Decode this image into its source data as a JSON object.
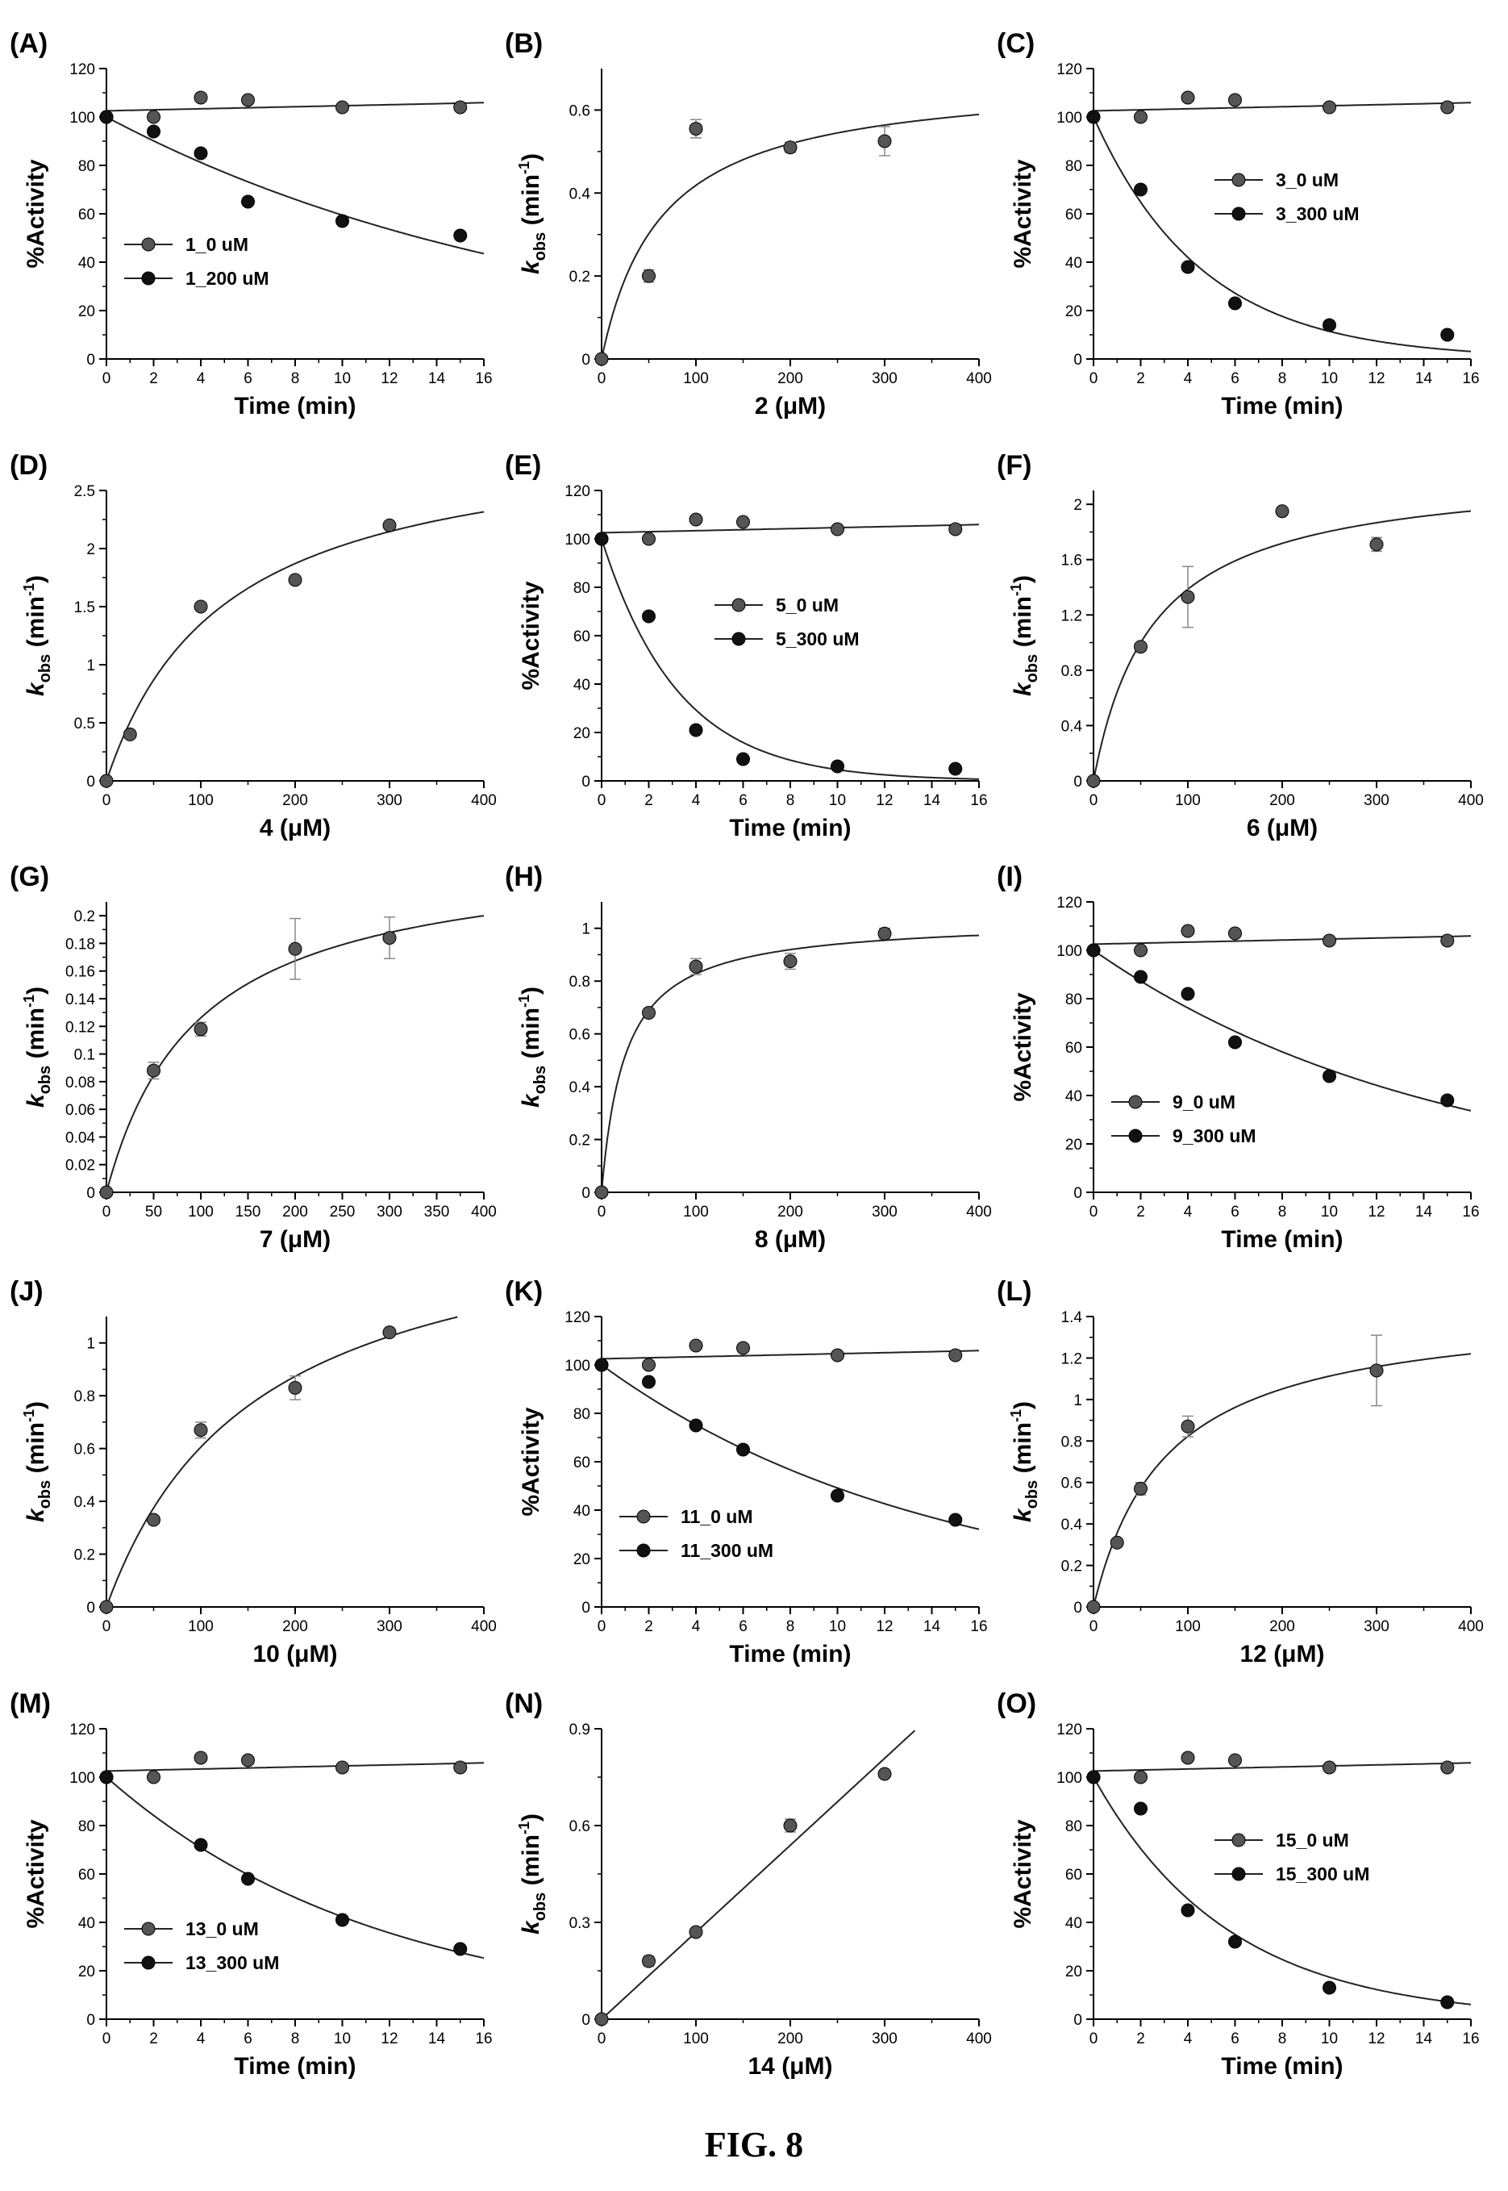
{
  "figure": {
    "caption": "FIG. 8"
  },
  "chart_data": [
    {
      "panel": "(A)",
      "type": "scatter",
      "xlabel": "Time (min)",
      "ylabel": "%Activity",
      "xlim": [
        0,
        16
      ],
      "ylim": [
        0,
        120
      ],
      "xticks": [
        0,
        2,
        4,
        6,
        8,
        10,
        12,
        14,
        16
      ],
      "yticks": [
        0,
        20,
        40,
        60,
        80,
        100,
        120
      ],
      "legend": "mid-left",
      "grid": false,
      "series": [
        {
          "name": "1_0 uM",
          "marker": "#555555",
          "x": [
            0,
            2,
            4,
            6,
            10,
            15
          ],
          "y": [
            100,
            100,
            108,
            107,
            104,
            104
          ],
          "fit": "flat"
        },
        {
          "name": "1_200 uM",
          "marker": "#111111",
          "x": [
            0,
            2,
            4,
            6,
            10,
            15
          ],
          "y": [
            100,
            94,
            85,
            65,
            57,
            51
          ],
          "fit": "decay"
        }
      ]
    },
    {
      "panel": "(B)",
      "type": "scatter",
      "xlabel": "2 (μM)",
      "ylabel": "kobs (min-1)",
      "xlim": [
        0,
        400
      ],
      "ylim": [
        0,
        0.7
      ],
      "xticks": [
        0,
        100,
        200,
        300,
        400
      ],
      "yticks": [
        0,
        0.2,
        0.4,
        0.6
      ],
      "grid": false,
      "series": [
        {
          "marker": "#555555",
          "x": [
            0,
            50,
            100,
            200,
            300
          ],
          "y": [
            0,
            0.2,
            0.555,
            0.51,
            0.525
          ],
          "err": [
            0,
            0.015,
            0.022,
            0.012,
            0.035
          ],
          "fit": "hyperbolic"
        }
      ]
    },
    {
      "panel": "(C)",
      "type": "scatter",
      "xlabel": "Time (min)",
      "ylabel": "%Activity",
      "xlim": [
        0,
        16
      ],
      "ylim": [
        0,
        120
      ],
      "xticks": [
        0,
        2,
        4,
        6,
        8,
        10,
        12,
        14,
        16
      ],
      "yticks": [
        0,
        20,
        40,
        60,
        80,
        100,
        120
      ],
      "legend": "upper-right",
      "grid": false,
      "series": [
        {
          "name": "3_0 uM",
          "marker": "#555555",
          "x": [
            0,
            2,
            4,
            6,
            10,
            15
          ],
          "y": [
            100,
            100,
            108,
            107,
            104,
            104
          ],
          "fit": "flat"
        },
        {
          "name": "3_300 uM",
          "marker": "#111111",
          "x": [
            0,
            2,
            4,
            6,
            10,
            15
          ],
          "y": [
            100,
            70,
            38,
            23,
            14,
            10
          ],
          "fit": "decay"
        }
      ]
    },
    {
      "panel": "(D)",
      "type": "scatter",
      "xlabel": "4 (μM)",
      "ylabel": "kobs (min-1)",
      "xlim": [
        0,
        400
      ],
      "ylim": [
        0,
        2.5
      ],
      "xticks": [
        0,
        100,
        200,
        300,
        400
      ],
      "yticks": [
        0,
        0.5,
        1,
        1.5,
        2,
        2.5
      ],
      "grid": false,
      "series": [
        {
          "marker": "#555555",
          "x": [
            0,
            25,
            100,
            200,
            300
          ],
          "y": [
            0,
            0.4,
            1.5,
            1.73,
            2.2
          ],
          "fit": "hyperbolic"
        }
      ]
    },
    {
      "panel": "(E)",
      "type": "scatter",
      "xlabel": "Time (min)",
      "ylabel": "%Activity",
      "xlim": [
        0,
        16
      ],
      "ylim": [
        0,
        120
      ],
      "xticks": [
        0,
        2,
        4,
        6,
        8,
        10,
        12,
        14,
        16
      ],
      "yticks": [
        0,
        20,
        40,
        60,
        80,
        100,
        120
      ],
      "legend": "mid-right",
      "grid": false,
      "series": [
        {
          "name": "5_0 uM",
          "marker": "#555555",
          "x": [
            0,
            2,
            4,
            6,
            10,
            15
          ],
          "y": [
            100,
            100,
            108,
            107,
            104,
            104
          ],
          "fit": "flat"
        },
        {
          "name": "5_300 uM",
          "marker": "#111111",
          "x": [
            0,
            2,
            4,
            6,
            10,
            15
          ],
          "y": [
            100,
            68,
            21,
            9,
            6,
            5
          ],
          "fit": "decay"
        }
      ]
    },
    {
      "panel": "(F)",
      "type": "scatter",
      "xlabel": "6 (μM)",
      "ylabel": "kobs (min-1)",
      "xlim": [
        0,
        400
      ],
      "ylim": [
        0,
        2.1
      ],
      "xticks": [
        0,
        100,
        200,
        300,
        400
      ],
      "yticks": [
        0,
        0.4,
        0.8,
        1.2,
        1.6,
        2
      ],
      "grid": false,
      "series": [
        {
          "marker": "#555555",
          "x": [
            0,
            50,
            100,
            200,
            300
          ],
          "y": [
            0,
            0.97,
            1.33,
            1.95,
            1.71
          ],
          "err": [
            0,
            0.02,
            0.22,
            0.02,
            0.05
          ],
          "fit": "hyperbolic"
        }
      ]
    },
    {
      "panel": "(G)",
      "type": "scatter",
      "xlabel": "7 (μM)",
      "ylabel": "kobs (min-1)",
      "xlim": [
        0,
        400
      ],
      "ylim": [
        0,
        0.21
      ],
      "xticks": [
        0,
        50,
        100,
        150,
        200,
        250,
        300,
        350,
        400
      ],
      "yticks": [
        0,
        0.02,
        0.04,
        0.06,
        0.08,
        0.1,
        0.12,
        0.14,
        0.16,
        0.18,
        0.2
      ],
      "grid": false,
      "series": [
        {
          "marker": "#555555",
          "x": [
            0,
            50,
            100,
            200,
            300
          ],
          "y": [
            0,
            0.088,
            0.118,
            0.176,
            0.184
          ],
          "err": [
            0,
            0.006,
            0.005,
            0.022,
            0.015
          ],
          "fit": "hyperbolic"
        }
      ]
    },
    {
      "panel": "(H)",
      "type": "scatter",
      "xlabel": "8 (μM)",
      "ylabel": "kobs (min-1)",
      "xlim": [
        0,
        400
      ],
      "ylim": [
        0,
        1.1
      ],
      "xticks": [
        0,
        100,
        200,
        300,
        400
      ],
      "yticks": [
        0,
        0.2,
        0.4,
        0.6,
        0.8,
        1
      ],
      "grid": false,
      "series": [
        {
          "marker": "#555555",
          "x": [
            0,
            50,
            100,
            200,
            300
          ],
          "y": [
            0,
            0.68,
            0.855,
            0.875,
            0.98
          ],
          "err": [
            0,
            0.015,
            0.03,
            0.03,
            0.02
          ],
          "fit": "hyperbolic"
        }
      ]
    },
    {
      "panel": "(I)",
      "type": "scatter",
      "xlabel": "Time (min)",
      "ylabel": "%Activity",
      "xlim": [
        0,
        16
      ],
      "ylim": [
        0,
        120
      ],
      "xticks": [
        0,
        2,
        4,
        6,
        8,
        10,
        12,
        14,
        16
      ],
      "yticks": [
        0,
        20,
        40,
        60,
        80,
        100,
        120
      ],
      "legend": "lower-left",
      "grid": false,
      "series": [
        {
          "name": "9_0 uM",
          "marker": "#555555",
          "x": [
            0,
            2,
            4,
            6,
            10,
            15
          ],
          "y": [
            100,
            100,
            108,
            107,
            104,
            104
          ],
          "fit": "flat"
        },
        {
          "name": "9_300 uM",
          "marker": "#111111",
          "x": [
            0,
            2,
            4,
            6,
            10,
            15
          ],
          "y": [
            100,
            89,
            82,
            62,
            48,
            38
          ],
          "fit": "decay"
        }
      ]
    },
    {
      "panel": "(J)",
      "type": "scatter",
      "xlabel": "10 (μM)",
      "ylabel": "kobs (min-1)",
      "xlim": [
        0,
        400
      ],
      "ylim": [
        0,
        1.1
      ],
      "xticks": [
        0,
        100,
        200,
        300,
        400
      ],
      "yticks": [
        0,
        0.2,
        0.4,
        0.6,
        0.8,
        1
      ],
      "grid": false,
      "series": [
        {
          "marker": "#555555",
          "x": [
            0,
            50,
            100,
            200,
            300
          ],
          "y": [
            0,
            0.33,
            0.67,
            0.83,
            1.04
          ],
          "err": [
            0,
            0.01,
            0.03,
            0.045,
            0.01
          ],
          "fit": "hyperbolic"
        }
      ]
    },
    {
      "panel": "(K)",
      "type": "scatter",
      "xlabel": "Time (min)",
      "ylabel": "%Activity",
      "xlim": [
        0,
        16
      ],
      "ylim": [
        0,
        120
      ],
      "xticks": [
        0,
        2,
        4,
        6,
        8,
        10,
        12,
        14,
        16
      ],
      "yticks": [
        0,
        20,
        40,
        60,
        80,
        100,
        120
      ],
      "legend": "lower-left",
      "grid": false,
      "series": [
        {
          "name": "11_0 uM",
          "marker": "#555555",
          "x": [
            0,
            2,
            4,
            6,
            10,
            15
          ],
          "y": [
            100,
            100,
            108,
            107,
            104,
            104
          ],
          "fit": "flat"
        },
        {
          "name": "11_300 uM",
          "marker": "#111111",
          "x": [
            0,
            2,
            4,
            6,
            10,
            15
          ],
          "y": [
            100,
            93,
            75,
            65,
            46,
            36
          ],
          "fit": "decay"
        }
      ]
    },
    {
      "panel": "(L)",
      "type": "scatter",
      "xlabel": "12 (μM)",
      "ylabel": "kobs (min-1)",
      "xlim": [
        0,
        400
      ],
      "ylim": [
        0,
        1.4
      ],
      "xticks": [
        0,
        100,
        200,
        300,
        400
      ],
      "yticks": [
        0,
        0.2,
        0.4,
        0.6,
        0.8,
        1,
        1.2,
        1.4
      ],
      "grid": false,
      "series": [
        {
          "marker": "#555555",
          "x": [
            0,
            25,
            50,
            100,
            300
          ],
          "y": [
            0,
            0.31,
            0.57,
            0.87,
            1.14
          ],
          "err": [
            0,
            0.01,
            0.03,
            0.05,
            0.17
          ],
          "fit": "hyperbolic"
        }
      ]
    },
    {
      "panel": "(M)",
      "type": "scatter",
      "xlabel": "Time (min)",
      "ylabel": "%Activity",
      "xlim": [
        0,
        16
      ],
      "ylim": [
        0,
        120
      ],
      "xticks": [
        0,
        2,
        4,
        6,
        8,
        10,
        12,
        14,
        16
      ],
      "yticks": [
        0,
        20,
        40,
        60,
        80,
        100,
        120
      ],
      "legend": "lower-left",
      "grid": false,
      "series": [
        {
          "name": "13_0 uM",
          "marker": "#555555",
          "x": [
            0,
            2,
            4,
            6,
            10,
            15
          ],
          "y": [
            100,
            100,
            108,
            107,
            104,
            104
          ],
          "fit": "flat"
        },
        {
          "name": "13_300 uM",
          "marker": "#111111",
          "x": [
            0,
            4,
            6,
            10,
            15
          ],
          "y": [
            100,
            72,
            58,
            41,
            29
          ],
          "fit": "decay"
        }
      ]
    },
    {
      "panel": "(N)",
      "type": "scatter",
      "xlabel": "14 (μM)",
      "ylabel": "kobs (min-1)",
      "xlim": [
        0,
        400
      ],
      "ylim": [
        0,
        0.9
      ],
      "xticks": [
        0,
        100,
        200,
        300,
        400
      ],
      "yticks": [
        0,
        0.3,
        0.6,
        0.9
      ],
      "grid": false,
      "series": [
        {
          "marker": "#555555",
          "x": [
            0,
            50,
            100,
            200,
            300
          ],
          "y": [
            0,
            0.18,
            0.27,
            0.6,
            0.76
          ],
          "err": [
            0,
            0.015,
            0.01,
            0.02,
            0.01
          ],
          "fit": "linear"
        }
      ]
    },
    {
      "panel": "(O)",
      "type": "scatter",
      "xlabel": "Time (min)",
      "ylabel": "%Activity",
      "xlim": [
        0,
        16
      ],
      "ylim": [
        0,
        120
      ],
      "xticks": [
        0,
        2,
        4,
        6,
        8,
        10,
        12,
        14,
        16
      ],
      "yticks": [
        0,
        20,
        40,
        60,
        80,
        100,
        120
      ],
      "legend": "upper-right",
      "grid": false,
      "series": [
        {
          "name": "15_0 uM",
          "marker": "#555555",
          "x": [
            0,
            2,
            4,
            6,
            10,
            15
          ],
          "y": [
            100,
            100,
            108,
            107,
            104,
            104
          ],
          "fit": "flat"
        },
        {
          "name": "15_300 uM",
          "marker": "#111111",
          "x": [
            0,
            2,
            4,
            6,
            10,
            15
          ],
          "y": [
            100,
            87,
            45,
            32,
            13,
            7
          ],
          "fit": "decay"
        }
      ]
    }
  ]
}
